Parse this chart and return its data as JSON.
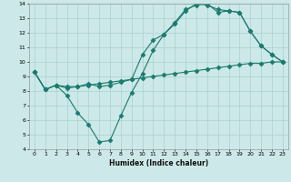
{
  "title": "",
  "xlabel": "Humidex (Indice chaleur)",
  "xlim": [
    -0.5,
    23.5
  ],
  "ylim": [
    4,
    14
  ],
  "xticks": [
    0,
    1,
    2,
    3,
    4,
    5,
    6,
    7,
    8,
    9,
    10,
    11,
    12,
    13,
    14,
    15,
    16,
    17,
    18,
    19,
    20,
    21,
    22,
    23
  ],
  "yticks": [
    4,
    5,
    6,
    7,
    8,
    9,
    10,
    11,
    12,
    13,
    14
  ],
  "bg_color": "#cce8e8",
  "grid_color": "#aad0d0",
  "line_color": "#1a7a6e",
  "line1_x": [
    0,
    1,
    2,
    3,
    4,
    5,
    6,
    7,
    8,
    9,
    10,
    11,
    12,
    13,
    14,
    15,
    16,
    17,
    18,
    19,
    20,
    21,
    22,
    23
  ],
  "line1_y": [
    9.3,
    8.1,
    8.4,
    8.3,
    8.3,
    8.4,
    8.5,
    8.6,
    8.7,
    8.8,
    8.9,
    9.0,
    9.1,
    9.2,
    9.3,
    9.4,
    9.5,
    9.6,
    9.7,
    9.8,
    9.9,
    9.9,
    10.0,
    10.0
  ],
  "line2_x": [
    0,
    1,
    2,
    3,
    4,
    5,
    6,
    7,
    8,
    9,
    10,
    11,
    12,
    13,
    14,
    15,
    16,
    17,
    18,
    19,
    20,
    21,
    22,
    23
  ],
  "line2_y": [
    9.3,
    8.1,
    8.4,
    7.7,
    6.5,
    5.7,
    4.5,
    4.6,
    6.3,
    7.9,
    9.2,
    10.8,
    11.9,
    12.7,
    13.6,
    13.9,
    14.0,
    13.4,
    13.5,
    13.4,
    12.1,
    11.1,
    10.5,
    10.0
  ],
  "line3_x": [
    0,
    1,
    2,
    3,
    4,
    5,
    6,
    7,
    8,
    9,
    10,
    11,
    12,
    13,
    14,
    15,
    16,
    17,
    18,
    19,
    20,
    21,
    22,
    23
  ],
  "line3_y": [
    9.3,
    8.1,
    8.4,
    8.2,
    8.3,
    8.5,
    8.3,
    8.4,
    8.6,
    8.8,
    10.5,
    11.5,
    11.9,
    12.6,
    13.5,
    14.0,
    13.9,
    13.6,
    13.5,
    13.4,
    12.1,
    11.1,
    10.5,
    10.0
  ]
}
